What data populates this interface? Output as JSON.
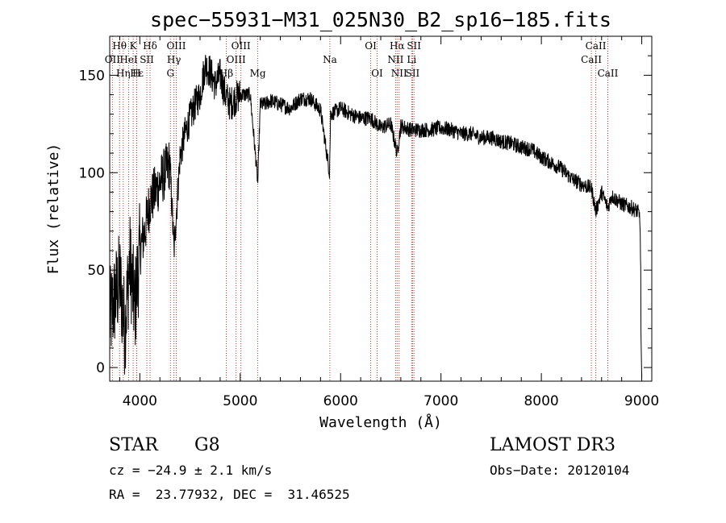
{
  "chart_data": {
    "type": "line",
    "title": "spec−55931−M31_025N30_B2_sp16−185.fits",
    "xlabel": "Wavelength (Å)",
    "ylabel": "Flux (relative)",
    "xlim": [
      3700,
      9100
    ],
    "ylim": [
      -7,
      170
    ],
    "xticks": [
      4000,
      5000,
      6000,
      7000,
      8000,
      9000
    ],
    "yticks": [
      0,
      50,
      100,
      150
    ],
    "grid": false,
    "series": [
      {
        "name": "spectrum",
        "x": [
          3700,
          3750,
          3800,
          3850,
          3900,
          3950,
          4000,
          4050,
          4100,
          4150,
          4200,
          4250,
          4300,
          4340,
          4400,
          4450,
          4500,
          4550,
          4600,
          4650,
          4700,
          4750,
          4800,
          4850,
          4900,
          4950,
          5000,
          5100,
          5175,
          5200,
          5250,
          5300,
          5400,
          5500,
          5600,
          5700,
          5800,
          5890,
          5900,
          6000,
          6100,
          6200,
          6300,
          6400,
          6500,
          6563,
          6600,
          6700,
          6800,
          6900,
          7000,
          7100,
          7200,
          7300,
          7400,
          7500,
          7600,
          7700,
          7800,
          7900,
          8000,
          8100,
          8200,
          8300,
          8400,
          8500,
          8542,
          8600,
          8662,
          8700,
          8800,
          8900,
          8960,
          8980,
          9000
        ],
        "y": [
          25,
          35,
          45,
          20,
          55,
          30,
          60,
          70,
          85,
          90,
          95,
          100,
          105,
          60,
          108,
          120,
          128,
          135,
          140,
          155,
          152,
          145,
          150,
          140,
          135,
          138,
          140,
          140,
          95,
          135,
          135,
          137,
          135,
          133,
          138,
          138,
          132,
          100,
          130,
          133,
          130,
          128,
          128,
          123,
          125,
          110,
          124,
          122,
          122,
          122,
          123,
          122,
          120,
          120,
          118,
          118,
          116,
          115,
          113,
          112,
          108,
          105,
          102,
          97,
          94,
          92,
          80,
          90,
          82,
          88,
          84,
          82,
          80,
          78,
          25
        ]
      }
    ],
    "lines": [
      {
        "label": "Hθ",
        "wl": 3798,
        "row": 0
      },
      {
        "label": "OII",
        "wl": 3727,
        "row": 1
      },
      {
        "label": "Hη",
        "wl": 3835,
        "row": 2
      },
      {
        "label": "K",
        "wl": 3934,
        "row": 0
      },
      {
        "label": "HeI",
        "wl": 3889,
        "row": 1
      },
      {
        "label": "Hε",
        "wl": 3970,
        "row": 2
      },
      {
        "label": "Hδ",
        "wl": 4102,
        "row": 0
      },
      {
        "label": "SII",
        "wl": 4070,
        "row": 1
      },
      {
        "label": "H",
        "wl": 3968,
        "row": 2
      },
      {
        "label": "OIII",
        "wl": 4363,
        "row": 0
      },
      {
        "label": "Hγ",
        "wl": 4340,
        "row": 1
      },
      {
        "label": "G",
        "wl": 4305,
        "row": 2
      },
      {
        "label": "OIII",
        "wl": 5007,
        "row": 0
      },
      {
        "label": "OIII",
        "wl": 4959,
        "row": 1
      },
      {
        "label": "Hβ",
        "wl": 4861,
        "row": 2
      },
      {
        "label": "Mg",
        "wl": 5175,
        "row": 2
      },
      {
        "label": "Na",
        "wl": 5893,
        "row": 1
      },
      {
        "label": "OI",
        "wl": 6300,
        "row": 0
      },
      {
        "label": "OI",
        "wl": 6364,
        "row": 2
      },
      {
        "label": "Hα",
        "wl": 6563,
        "row": 0
      },
      {
        "label": "SII",
        "wl": 6731,
        "row": 0
      },
      {
        "label": "NII",
        "wl": 6548,
        "row": 1
      },
      {
        "label": "Li",
        "wl": 6708,
        "row": 1
      },
      {
        "label": "NII",
        "wl": 6583,
        "row": 2
      },
      {
        "label": "SII",
        "wl": 6717,
        "row": 2
      },
      {
        "label": "CaII",
        "wl": 8542,
        "row": 0
      },
      {
        "label": "CaII",
        "wl": 8498,
        "row": 1
      },
      {
        "label": "CaII",
        "wl": 8662,
        "row": 2
      }
    ]
  },
  "footer": {
    "class_label": "STAR",
    "subclass": "G8",
    "survey": "LAMOST DR3",
    "cz": "cz = −24.9 ± 2.1 km/s",
    "obs_date": "Obs−Date: 20120104",
    "coords": "RA =  23.77932, DEC =  31.46525"
  },
  "colors": {
    "spectrum": "#000000",
    "line_marker": "#c0392b"
  }
}
